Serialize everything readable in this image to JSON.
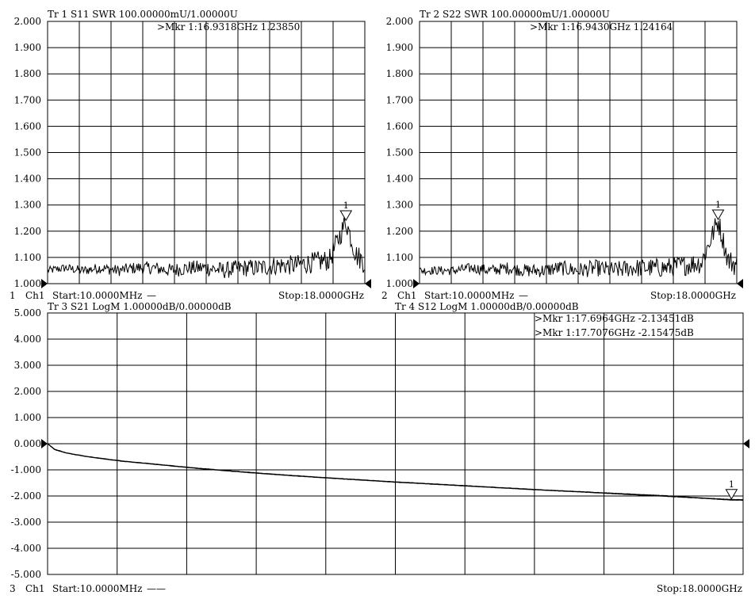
{
  "chart_data": [
    {
      "type": "line",
      "trace": "Tr 1",
      "measurement": "S11",
      "format": "SWR",
      "scale": "100.00000mU/1.00000U",
      "ylim": [
        1.0,
        2.0
      ],
      "yticks": [
        "2.000",
        "1.900",
        "1.800",
        "1.700",
        "1.600",
        "1.500",
        "1.400",
        "1.300",
        "1.200",
        "1.100",
        "1.000"
      ],
      "x_unit": "GHz",
      "xlim": [
        0.01,
        18.0
      ],
      "grid": true,
      "channel_index": "1",
      "channel": "Ch1",
      "start_label": "Start:10.0000MHz",
      "stop_label": "Stop:18.0000GHz",
      "trace_marks": "—",
      "series": [
        {
          "x": [
            0.01,
            1,
            2,
            3,
            4,
            5,
            6,
            7,
            8,
            9,
            10,
            11,
            12,
            13,
            14,
            15,
            16,
            16.9318,
            17.5,
            18.0
          ],
          "y": [
            1.05,
            1.06,
            1.05,
            1.06,
            1.05,
            1.06,
            1.06,
            1.05,
            1.06,
            1.06,
            1.05,
            1.06,
            1.06,
            1.07,
            1.07,
            1.08,
            1.09,
            1.2385,
            1.11,
            1.08
          ]
        }
      ],
      "marker": {
        "id": "1",
        "x": 16.9318,
        "y": 1.2385
      },
      "marker_readouts": [
        ">Mkr 1:16.9318GHz 1.23850"
      ]
    },
    {
      "type": "line",
      "trace": "Tr 2",
      "measurement": "S22",
      "format": "SWR",
      "scale": "100.00000mU/1.00000U",
      "ylim": [
        1.0,
        2.0
      ],
      "yticks": [
        "2.000",
        "1.900",
        "1.800",
        "1.700",
        "1.600",
        "1.500",
        "1.400",
        "1.300",
        "1.200",
        "1.100",
        "1.000"
      ],
      "x_unit": "GHz",
      "xlim": [
        0.01,
        18.0
      ],
      "grid": true,
      "channel_index": "2",
      "channel": "Ch1",
      "start_label": "Start:10.0000MHz",
      "stop_label": "Stop:18.0000GHz",
      "trace_marks": "—",
      "series": [
        {
          "x": [
            0.01,
            1,
            2,
            3,
            4,
            5,
            6,
            7,
            8,
            9,
            10,
            11,
            12,
            13,
            14,
            15,
            16,
            16.943,
            17.5,
            18.0
          ],
          "y": [
            1.05,
            1.05,
            1.05,
            1.06,
            1.05,
            1.06,
            1.05,
            1.05,
            1.06,
            1.05,
            1.06,
            1.05,
            1.06,
            1.06,
            1.06,
            1.07,
            1.08,
            1.24164,
            1.09,
            1.07
          ]
        }
      ],
      "marker": {
        "id": "1",
        "x": 16.943,
        "y": 1.24164
      },
      "marker_readouts": [
        ">Mkr 1:16.9430GHz 1.24164"
      ]
    },
    {
      "type": "line",
      "traces": [
        "Tr 3",
        "Tr 4"
      ],
      "headers": [
        "Tr 3  S21 LogM 1.00000dB/0.00000dB",
        "Tr 4  S12 LogM 1.00000dB/0.00000dB"
      ],
      "format": "LogM",
      "ylim": [
        -5.0,
        5.0
      ],
      "yticks": [
        "5.000",
        "4.000",
        "3.000",
        "2.000",
        "1.000",
        "0.000",
        "-1.000",
        "-2.000",
        "-3.000",
        "-4.000",
        "-5.000"
      ],
      "x_unit": "GHz",
      "xlim": [
        0.01,
        18.0
      ],
      "grid": true,
      "channel_index": "3",
      "channel": "Ch1",
      "start_label": "Start:10.0000MHz",
      "stop_label": "Stop:18.0000GHz",
      "trace_marks": "——",
      "series": [
        {
          "x": [
            0.01,
            0.2,
            0.5,
            1,
            1.5,
            2,
            3,
            4,
            5,
            6,
            7,
            8,
            9,
            10,
            11,
            12,
            13,
            14,
            15,
            16,
            17,
            17.6964,
            18.0
          ],
          "y": [
            0,
            -0.22,
            -0.35,
            -0.48,
            -0.58,
            -0.67,
            -0.81,
            -0.95,
            -1.07,
            -1.18,
            -1.28,
            -1.37,
            -1.46,
            -1.54,
            -1.62,
            -1.7,
            -1.78,
            -1.85,
            -1.92,
            -1.99,
            -2.08,
            -2.13451,
            -2.14
          ]
        },
        {
          "x": [
            0.01,
            0.2,
            0.5,
            1,
            1.5,
            2,
            3,
            4,
            5,
            6,
            7,
            8,
            9,
            10,
            11,
            12,
            13,
            14,
            15,
            16,
            17,
            17.7076,
            18.0
          ],
          "y": [
            0,
            -0.23,
            -0.36,
            -0.49,
            -0.59,
            -0.68,
            -0.82,
            -0.96,
            -1.08,
            -1.19,
            -1.29,
            -1.38,
            -1.47,
            -1.55,
            -1.63,
            -1.71,
            -1.79,
            -1.86,
            -1.94,
            -2.01,
            -2.09,
            -2.15475,
            -2.16
          ]
        }
      ],
      "marker": {
        "id": "1",
        "x": 17.7,
        "y": -2.145
      },
      "marker_readouts": [
        ">Mkr 1:17.6964GHz -2.13451dB",
        ">Mkr 1:17.7076GHz -2.15475dB"
      ]
    }
  ],
  "header_labels": {
    "tr1": "Tr 1  S11 SWR 100.00000mU/1.00000U",
    "tr2": "Tr 2  S22 SWR 100.00000mU/1.00000U"
  }
}
